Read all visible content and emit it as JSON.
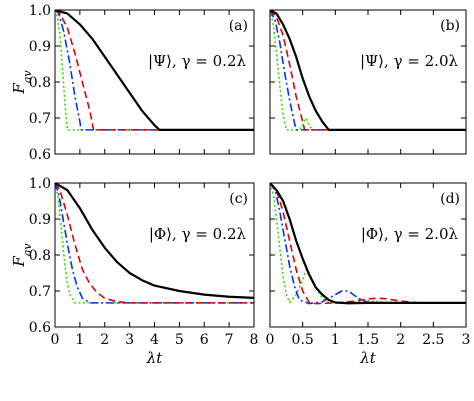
{
  "chart_data": [
    {
      "id": "a",
      "type": "line",
      "panel_label": "(a)",
      "annotation": "|Ψ⟩, γ = 0.2λ",
      "xlabel": "",
      "ylabel": "F_av",
      "xlim": [
        0,
        8
      ],
      "ylim": [
        0.6,
        1.0
      ],
      "xticks": [
        0,
        1,
        2,
        3,
        4,
        5,
        6,
        7,
        8
      ],
      "xtick_labels": [],
      "yticks": [
        0.6,
        0.7,
        0.8,
        0.9,
        1.0
      ],
      "ytick_labels": [
        "0.6",
        "0.7",
        "0.8",
        "0.9",
        "1.0"
      ],
      "series": [
        {
          "color": "#000000",
          "dash": "solid",
          "points": [
            [
              0,
              1.0
            ],
            [
              0.5,
              0.99
            ],
            [
              1,
              0.96
            ],
            [
              1.5,
              0.92
            ],
            [
              2,
              0.87
            ],
            [
              2.5,
              0.82
            ],
            [
              3,
              0.77
            ],
            [
              3.5,
              0.72
            ],
            [
              4,
              0.68
            ],
            [
              4.2,
              0.667
            ],
            [
              8,
              0.667
            ]
          ]
        },
        {
          "color": "#e00000",
          "dash": "dashed",
          "points": [
            [
              0,
              1.0
            ],
            [
              0.2,
              0.99
            ],
            [
              0.5,
              0.95
            ],
            [
              0.8,
              0.88
            ],
            [
              1.1,
              0.8
            ],
            [
              1.4,
              0.72
            ],
            [
              1.55,
              0.667
            ],
            [
              8,
              0.667
            ]
          ]
        },
        {
          "color": "#0033ff",
          "dash": "dashdot",
          "points": [
            [
              0,
              1.0
            ],
            [
              0.15,
              0.99
            ],
            [
              0.35,
              0.94
            ],
            [
              0.6,
              0.85
            ],
            [
              0.8,
              0.76
            ],
            [
              1.0,
              0.69
            ],
            [
              1.05,
              0.667
            ],
            [
              8,
              0.667
            ]
          ]
        },
        {
          "color": "#33dd00",
          "dash": "dotted",
          "points": [
            [
              0,
              1.0
            ],
            [
              0.1,
              0.98
            ],
            [
              0.2,
              0.93
            ],
            [
              0.3,
              0.84
            ],
            [
              0.4,
              0.74
            ],
            [
              0.5,
              0.667
            ],
            [
              8,
              0.667
            ]
          ]
        }
      ]
    },
    {
      "id": "b",
      "type": "line",
      "panel_label": "(b)",
      "annotation": "|Ψ⟩, γ = 2.0λ",
      "xlabel": "",
      "ylabel": "",
      "xlim": [
        0,
        3
      ],
      "ylim": [
        0.6,
        1.0
      ],
      "xticks": [
        0,
        0.5,
        1,
        1.5,
        2,
        2.5,
        3
      ],
      "xtick_labels": [],
      "yticks": [
        0.6,
        0.7,
        0.8,
        0.9,
        1.0
      ],
      "ytick_labels": [],
      "series": [
        {
          "color": "#000000",
          "dash": "solid",
          "points": [
            [
              0,
              1.0
            ],
            [
              0.1,
              0.99
            ],
            [
              0.2,
              0.96
            ],
            [
              0.3,
              0.92
            ],
            [
              0.4,
              0.87
            ],
            [
              0.5,
              0.81
            ],
            [
              0.6,
              0.76
            ],
            [
              0.7,
              0.72
            ],
            [
              0.8,
              0.69
            ],
            [
              0.9,
              0.667
            ],
            [
              3,
              0.667
            ]
          ]
        },
        {
          "color": "#e00000",
          "dash": "dashed",
          "points": [
            [
              0,
              1.0
            ],
            [
              0.1,
              0.98
            ],
            [
              0.2,
              0.93
            ],
            [
              0.3,
              0.85
            ],
            [
              0.4,
              0.76
            ],
            [
              0.5,
              0.69
            ],
            [
              0.53,
              0.667
            ],
            [
              3,
              0.667
            ]
          ]
        },
        {
          "color": "#0033ff",
          "dash": "dashdot",
          "points": [
            [
              0,
              1.0
            ],
            [
              0.08,
              0.97
            ],
            [
              0.15,
              0.91
            ],
            [
              0.22,
              0.83
            ],
            [
              0.3,
              0.75
            ],
            [
              0.37,
              0.69
            ],
            [
              0.4,
              0.667
            ],
            [
              3,
              0.667
            ]
          ]
        },
        {
          "color": "#33dd00",
          "dash": "dotted",
          "points": [
            [
              0,
              1.0
            ],
            [
              0.05,
              0.96
            ],
            [
              0.1,
              0.88
            ],
            [
              0.15,
              0.79
            ],
            [
              0.2,
              0.71
            ],
            [
              0.25,
              0.667
            ],
            [
              0.45,
              0.667
            ],
            [
              0.5,
              0.68
            ],
            [
              0.55,
              0.7
            ],
            [
              0.6,
              0.68
            ],
            [
              0.65,
              0.667
            ],
            [
              3,
              0.667
            ]
          ]
        }
      ]
    },
    {
      "id": "c",
      "type": "line",
      "panel_label": "(c)",
      "annotation": "|Φ⟩, γ = 0.2λ",
      "xlabel": "λt",
      "ylabel": "F_av",
      "xlim": [
        0,
        8
      ],
      "ylim": [
        0.6,
        1.0
      ],
      "xticks": [
        0,
        1,
        2,
        3,
        4,
        5,
        6,
        7,
        8
      ],
      "xtick_labels": [
        "0",
        "1",
        "2",
        "3",
        "4",
        "5",
        "6",
        "7",
        "8"
      ],
      "yticks": [
        0.6,
        0.7,
        0.8,
        0.9,
        1.0
      ],
      "ytick_labels": [
        "0.6",
        "0.7",
        "0.8",
        "0.9",
        "1.0"
      ],
      "series": [
        {
          "color": "#000000",
          "dash": "solid",
          "points": [
            [
              0,
              1.0
            ],
            [
              0.5,
              0.98
            ],
            [
              1,
              0.93
            ],
            [
              1.5,
              0.87
            ],
            [
              2,
              0.82
            ],
            [
              2.5,
              0.78
            ],
            [
              3,
              0.75
            ],
            [
              3.5,
              0.73
            ],
            [
              4,
              0.715
            ],
            [
              5,
              0.7
            ],
            [
              6,
              0.69
            ],
            [
              7,
              0.684
            ],
            [
              8,
              0.681
            ]
          ]
        },
        {
          "color": "#e00000",
          "dash": "dashed",
          "points": [
            [
              0,
              1.0
            ],
            [
              0.2,
              0.98
            ],
            [
              0.5,
              0.91
            ],
            [
              0.8,
              0.83
            ],
            [
              1.1,
              0.76
            ],
            [
              1.4,
              0.72
            ],
            [
              1.7,
              0.695
            ],
            [
              2,
              0.68
            ],
            [
              2.5,
              0.67
            ],
            [
              3,
              0.667
            ],
            [
              8,
              0.667
            ]
          ]
        },
        {
          "color": "#0033ff",
          "dash": "dashdot",
          "points": [
            [
              0,
              1.0
            ],
            [
              0.15,
              0.97
            ],
            [
              0.3,
              0.91
            ],
            [
              0.5,
              0.83
            ],
            [
              0.7,
              0.76
            ],
            [
              0.9,
              0.71
            ],
            [
              1.1,
              0.68
            ],
            [
              1.4,
              0.667
            ],
            [
              8,
              0.667
            ]
          ]
        },
        {
          "color": "#33dd00",
          "dash": "dotted",
          "points": [
            [
              0,
              1.0
            ],
            [
              0.1,
              0.97
            ],
            [
              0.2,
              0.91
            ],
            [
              0.3,
              0.84
            ],
            [
              0.4,
              0.77
            ],
            [
              0.5,
              0.72
            ],
            [
              0.6,
              0.69
            ],
            [
              0.8,
              0.667
            ],
            [
              8,
              0.667
            ]
          ]
        }
      ]
    },
    {
      "id": "d",
      "type": "line",
      "panel_label": "(d)",
      "annotation": "|Φ⟩, γ = 2.0λ",
      "xlabel": "λt",
      "ylabel": "",
      "xlim": [
        0,
        3
      ],
      "ylim": [
        0.6,
        1.0
      ],
      "xticks": [
        0,
        0.5,
        1,
        1.5,
        2,
        2.5,
        3
      ],
      "xtick_labels": [
        "0",
        "0.5",
        "1",
        "1.5",
        "2",
        "2.5",
        "3"
      ],
      "yticks": [
        0.6,
        0.7,
        0.8,
        0.9,
        1.0
      ],
      "ytick_labels": [],
      "series": [
        {
          "color": "#000000",
          "dash": "solid",
          "points": [
            [
              0,
              1.0
            ],
            [
              0.1,
              0.98
            ],
            [
              0.2,
              0.95
            ],
            [
              0.3,
              0.9
            ],
            [
              0.4,
              0.84
            ],
            [
              0.5,
              0.79
            ],
            [
              0.6,
              0.745
            ],
            [
              0.7,
              0.71
            ],
            [
              0.8,
              0.69
            ],
            [
              0.9,
              0.675
            ],
            [
              1,
              0.668
            ],
            [
              1.2,
              0.666
            ],
            [
              1.5,
              0.667
            ],
            [
              3,
              0.667
            ]
          ]
        },
        {
          "color": "#e00000",
          "dash": "dashed",
          "points": [
            [
              0,
              1.0
            ],
            [
              0.1,
              0.98
            ],
            [
              0.2,
              0.92
            ],
            [
              0.3,
              0.84
            ],
            [
              0.4,
              0.76
            ],
            [
              0.5,
              0.7
            ],
            [
              0.6,
              0.668
            ],
            [
              0.7,
              0.665
            ],
            [
              1.0,
              0.667
            ],
            [
              1.3,
              0.672
            ],
            [
              1.5,
              0.678
            ],
            [
              1.65,
              0.68
            ],
            [
              1.8,
              0.678
            ],
            [
              2.0,
              0.672
            ],
            [
              2.3,
              0.667
            ],
            [
              3,
              0.667
            ]
          ]
        },
        {
          "color": "#0033ff",
          "dash": "dashdot",
          "points": [
            [
              0,
              1.0
            ],
            [
              0.08,
              0.98
            ],
            [
              0.15,
              0.92
            ],
            [
              0.22,
              0.85
            ],
            [
              0.3,
              0.77
            ],
            [
              0.38,
              0.71
            ],
            [
              0.45,
              0.675
            ],
            [
              0.6,
              0.665
            ],
            [
              0.8,
              0.67
            ],
            [
              0.95,
              0.685
            ],
            [
              1.1,
              0.7
            ],
            [
              1.2,
              0.7
            ],
            [
              1.35,
              0.68
            ],
            [
              1.5,
              0.668
            ],
            [
              1.8,
              0.667
            ],
            [
              3,
              0.667
            ]
          ]
        },
        {
          "color": "#33dd00",
          "dash": "dotted",
          "points": [
            [
              0,
              1.0
            ],
            [
              0.05,
              0.97
            ],
            [
              0.1,
              0.9
            ],
            [
              0.15,
              0.82
            ],
            [
              0.2,
              0.74
            ],
            [
              0.25,
              0.69
            ],
            [
              0.3,
              0.668
            ],
            [
              0.4,
              0.69
            ],
            [
              0.5,
              0.73
            ],
            [
              0.56,
              0.76
            ],
            [
              0.6,
              0.75
            ],
            [
              0.7,
              0.71
            ],
            [
              0.8,
              0.68
            ],
            [
              0.9,
              0.668
            ],
            [
              1.1,
              0.666
            ],
            [
              1.3,
              0.67
            ],
            [
              1.5,
              0.673
            ],
            [
              1.7,
              0.67
            ],
            [
              2,
              0.667
            ],
            [
              3,
              0.667
            ]
          ]
        }
      ]
    }
  ]
}
